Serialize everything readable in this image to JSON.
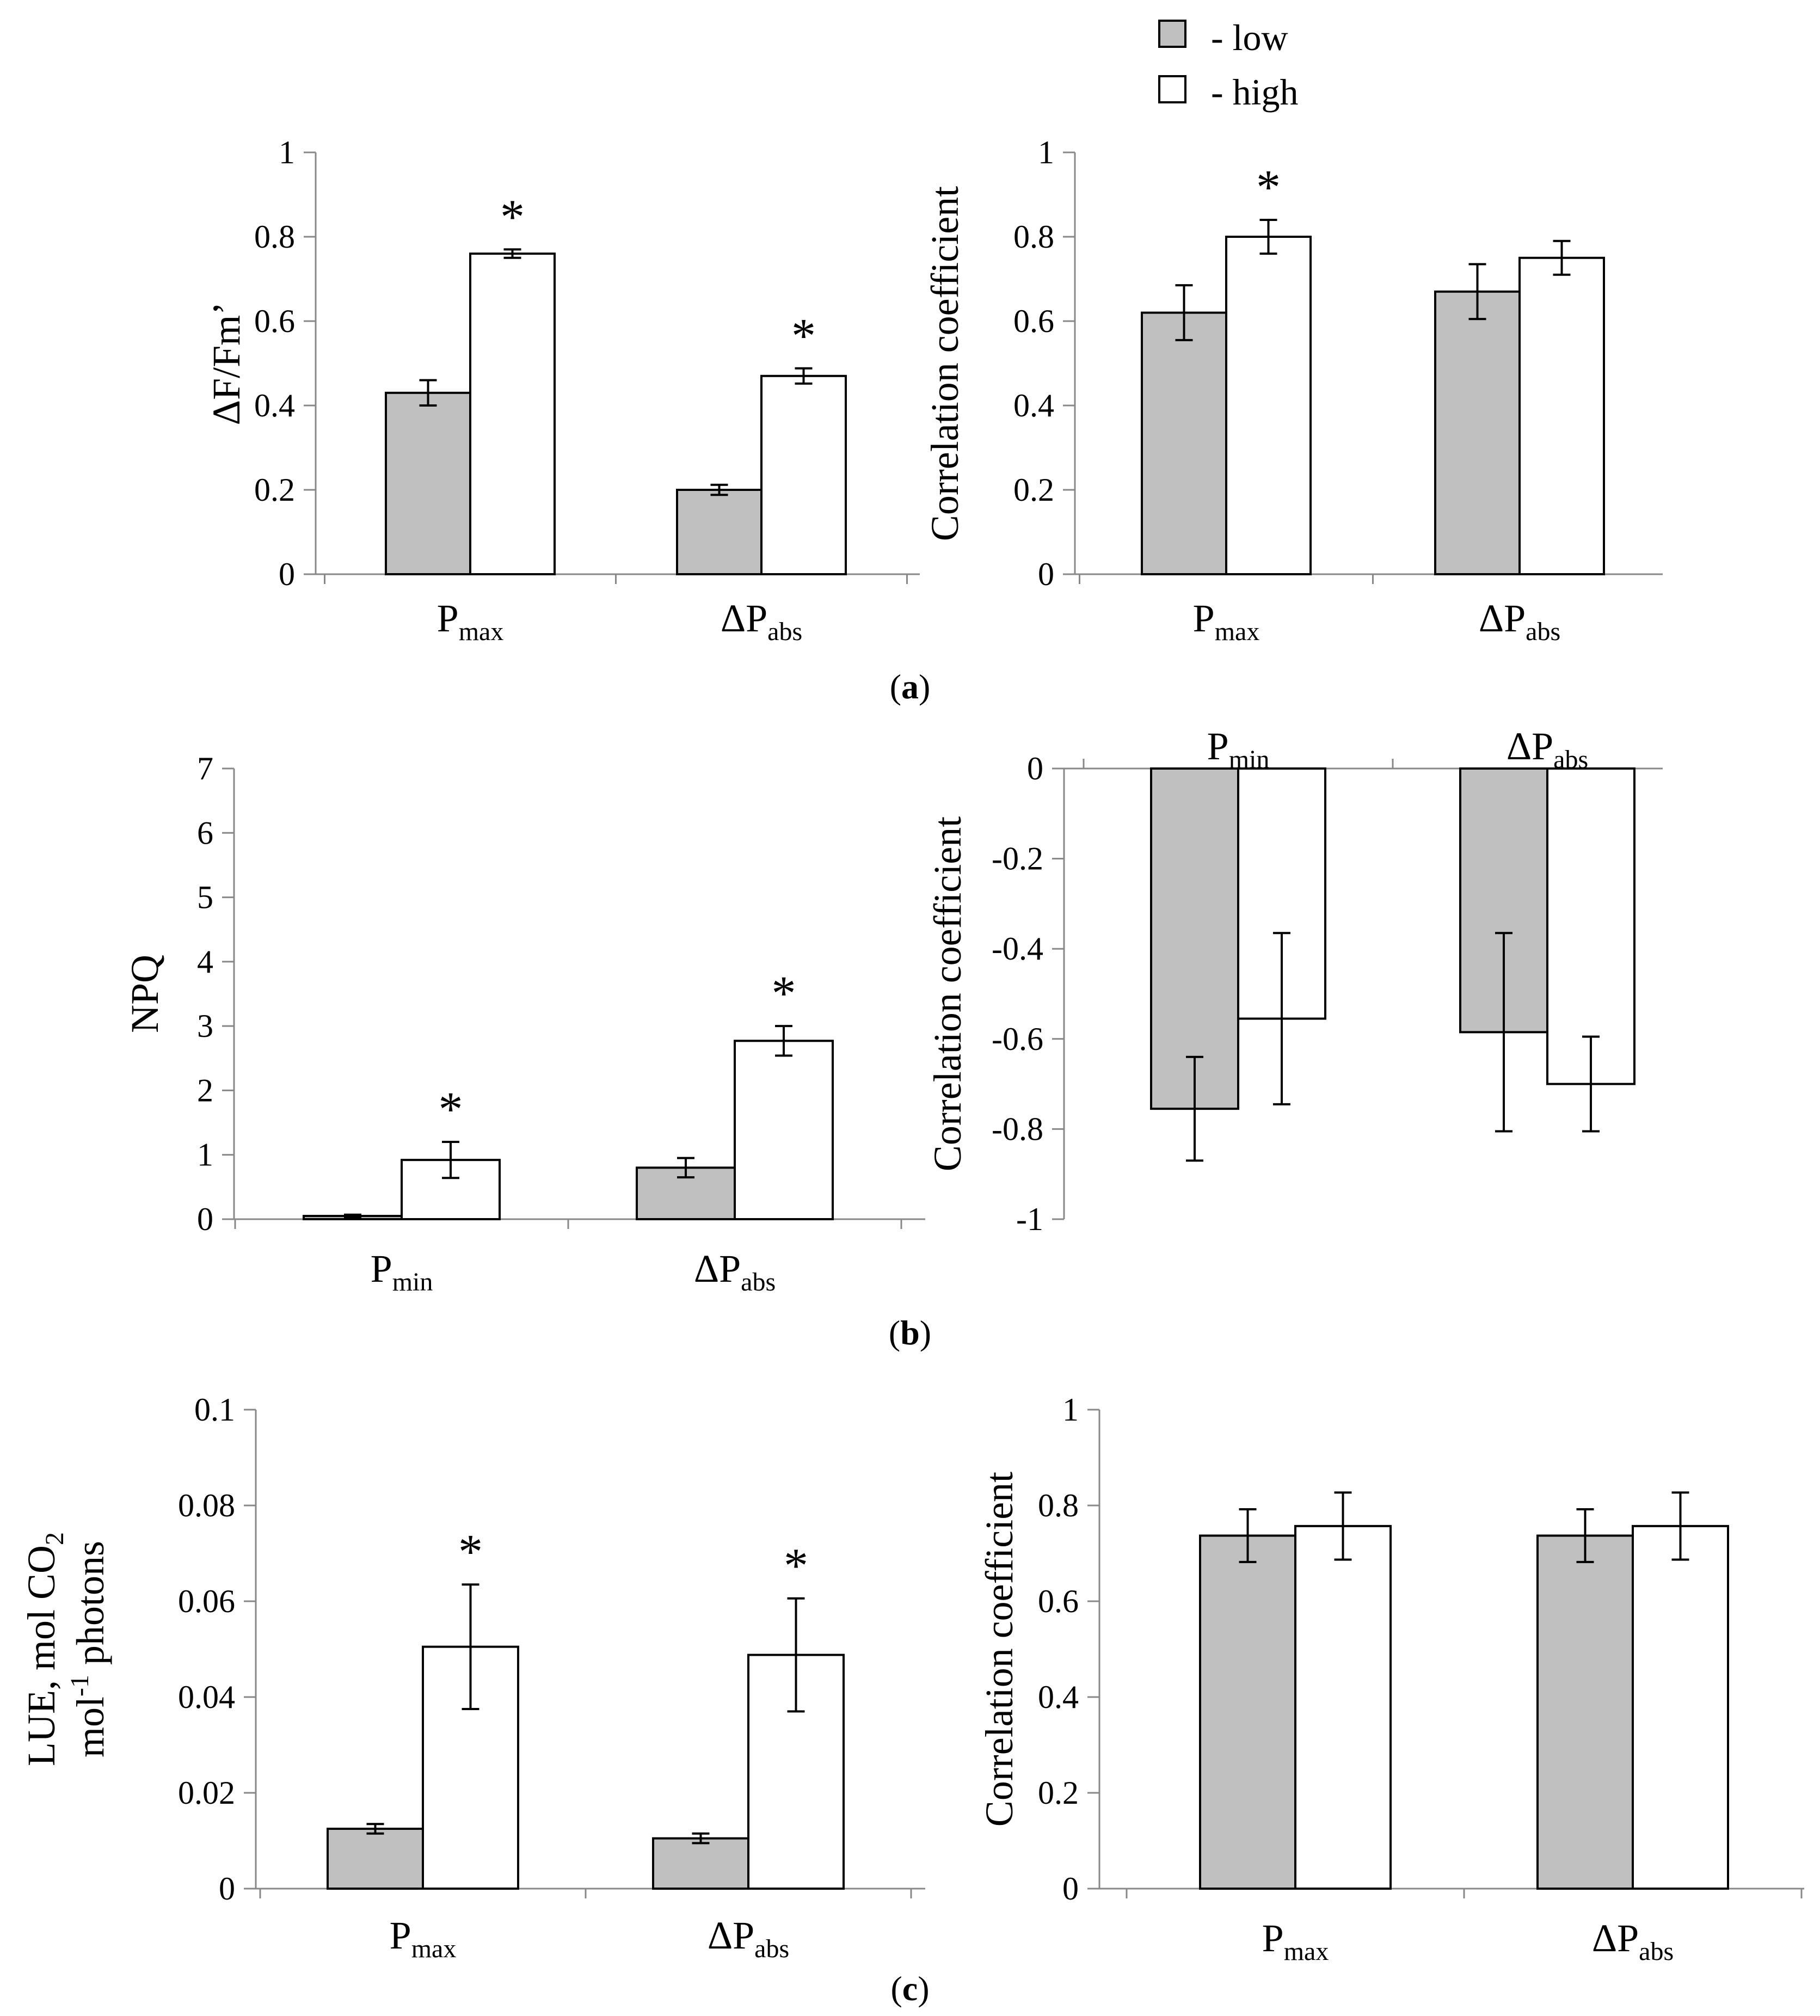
{
  "legend": {
    "items": [
      {
        "label": "- low",
        "color": "#c0c0c0"
      },
      {
        "label": "- high",
        "color": "#ffffff"
      }
    ]
  },
  "panel_labels": {
    "a": "a",
    "b": "b",
    "c": "c"
  },
  "chart_data": [
    {
      "id": "a-left",
      "type": "bar",
      "panel": "a",
      "ylabel": "ΔF/Fm’",
      "ylim": [
        0,
        1
      ],
      "yticks": [
        "0",
        "0.2",
        "0.4",
        "0.6",
        "0.8",
        "1"
      ],
      "categories": [
        {
          "main": "P",
          "sub": "max"
        },
        {
          "main": "ΔP",
          "sub": "abs"
        }
      ],
      "series": [
        {
          "name": "low",
          "values": [
            0.43,
            0.2
          ],
          "errors": [
            0.03,
            0.012
          ]
        },
        {
          "name": "high",
          "values": [
            0.76,
            0.47
          ],
          "errors": [
            0.01,
            0.018
          ]
        }
      ],
      "significance": [
        "*",
        "*"
      ]
    },
    {
      "id": "a-right",
      "type": "bar",
      "panel": "a",
      "ylabel": "Correlation coefficient",
      "ylim": [
        0,
        1
      ],
      "yticks": [
        "0",
        "0.2",
        "0.4",
        "0.6",
        "0.8",
        "1"
      ],
      "categories": [
        {
          "main": "P",
          "sub": "max"
        },
        {
          "main": "ΔP",
          "sub": "abs"
        }
      ],
      "series": [
        {
          "name": "low",
          "values": [
            0.62,
            0.67
          ],
          "errors": [
            0.065,
            0.065
          ]
        },
        {
          "name": "high",
          "values": [
            0.8,
            0.75
          ],
          "errors": [
            0.04,
            0.04
          ]
        }
      ],
      "significance": [
        "*",
        ""
      ]
    },
    {
      "id": "b-left",
      "type": "bar",
      "panel": "b",
      "ylabel": "NPQ",
      "ylim": [
        0,
        7
      ],
      "yticks": [
        "0",
        "1",
        "2",
        "3",
        "4",
        "5",
        "6",
        "7"
      ],
      "categories": [
        {
          "main": "P",
          "sub": "min"
        },
        {
          "main": "ΔP",
          "sub": "abs"
        }
      ],
      "series": [
        {
          "name": "low",
          "values": [
            0.05,
            0.8
          ],
          "errors": [
            0.02,
            0.15
          ]
        },
        {
          "name": "high",
          "values": [
            0.92,
            2.77
          ],
          "errors": [
            0.28,
            0.23
          ]
        }
      ],
      "significance": [
        "*",
        "*"
      ]
    },
    {
      "id": "b-right",
      "type": "bar",
      "panel": "b",
      "ylabel": "Correlation coefficient",
      "ylim": [
        -1,
        0
      ],
      "yticks": [
        "-1",
        "-0.8",
        "-0.6",
        "-0.4",
        "-0.2",
        "0"
      ],
      "categories": [
        {
          "main": "P",
          "sub": "min"
        },
        {
          "main": "ΔP",
          "sub": "abs"
        }
      ],
      "category_position": "top",
      "series": [
        {
          "name": "low",
          "values": [
            -0.755,
            -0.585
          ],
          "errors": [
            0.115,
            0.22
          ]
        },
        {
          "name": "high",
          "values": [
            -0.555,
            -0.7
          ],
          "errors": [
            0.19,
            0.105
          ]
        }
      ],
      "significance": [
        "",
        ""
      ]
    },
    {
      "id": "c-left",
      "type": "bar",
      "panel": "c",
      "ylabel_lines": [
        {
          "main": "LUE, mol CO",
          "sub": "2"
        },
        {
          "pre": "mol",
          "sup": "-1",
          "post": " photons"
        }
      ],
      "ylim": [
        0,
        0.1
      ],
      "yticks": [
        "0",
        "0.02",
        "0.04",
        "0.06",
        "0.08",
        "0.1"
      ],
      "categories": [
        {
          "main": "P",
          "sub": "max"
        },
        {
          "main": "ΔP",
          "sub": "abs"
        }
      ],
      "series": [
        {
          "name": "low",
          "values": [
            0.0125,
            0.0105
          ],
          "errors": [
            0.001,
            0.001
          ]
        },
        {
          "name": "high",
          "values": [
            0.0505,
            0.0488
          ],
          "errors": [
            0.013,
            0.0118
          ]
        }
      ],
      "significance": [
        "*",
        "*"
      ]
    },
    {
      "id": "c-right",
      "type": "bar",
      "panel": "c",
      "ylabel": "Correlation coefficient",
      "ylim": [
        0,
        1
      ],
      "yticks": [
        "0",
        "0.2",
        "0.4",
        "0.6",
        "0.8",
        "1"
      ],
      "categories": [
        {
          "main": "P",
          "sub": "max"
        },
        {
          "main": "ΔP",
          "sub": "abs"
        }
      ],
      "series": [
        {
          "name": "low",
          "values": [
            0.737,
            0.737
          ],
          "errors": [
            0.055,
            0.055
          ]
        },
        {
          "name": "high",
          "values": [
            0.757,
            0.757
          ],
          "errors": [
            0.07,
            0.07
          ]
        }
      ],
      "significance": [
        "",
        ""
      ]
    }
  ]
}
